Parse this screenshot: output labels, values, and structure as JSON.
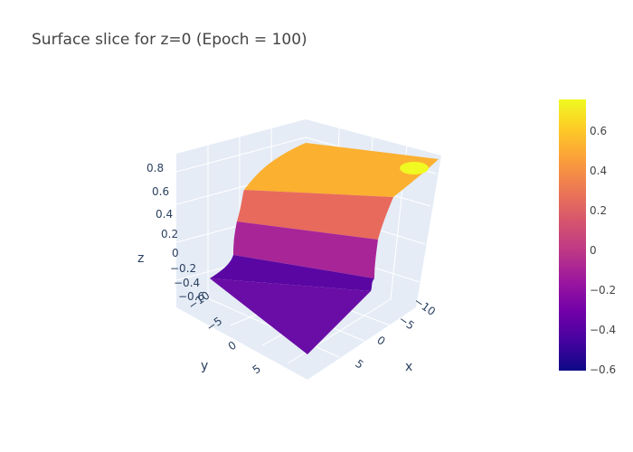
{
  "chart_data": {
    "type": "surface",
    "title": "Surface slice for z=0 (Epoch = 100)",
    "xlabel": "x",
    "ylabel": "y",
    "zlabel": "z",
    "x_ticks": [
      "−10",
      "−5",
      "0",
      "5"
    ],
    "y_ticks": [
      "−10",
      "−5",
      "0",
      "5"
    ],
    "z_ticks": [
      "−0.6",
      "−0.4",
      "−0.2",
      "0",
      "0.2",
      "0.4",
      "0.6",
      "0.8"
    ],
    "x_range": [
      -10,
      10
    ],
    "y_range": [
      -10,
      10
    ],
    "z_range": [
      -0.6,
      0.8
    ],
    "colorbar": {
      "range": [
        -0.6,
        0.77
      ],
      "ticks": [
        "0.6",
        "0.4",
        "0.2",
        "0",
        "−0.2",
        "−0.4",
        "−0.6"
      ],
      "colorscale": "Plasma"
    },
    "surface": {
      "description": "sigmoid step in y, nearly flat in x",
      "low_value": -0.58,
      "high_value": 0.65,
      "transition_center_y": -3,
      "max_value": 0.77,
      "max_location": {
        "x": -10,
        "y": 10
      }
    }
  },
  "colors": {
    "grid": "#dfe6f0",
    "pane": "#e5ecf6",
    "text": "#2a3f5f"
  }
}
